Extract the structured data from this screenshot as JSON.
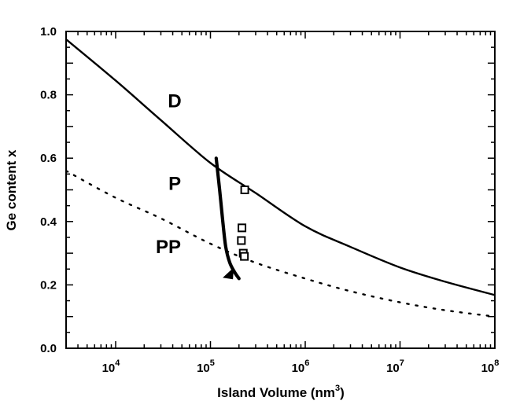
{
  "chart_data": {
    "type": "line",
    "title": "",
    "xlabel": "Island Volume (nm",
    "xlabel_sup": "3",
    "xlabel_close": ")",
    "ylabel": "Ge content x",
    "xscale": "log",
    "xlim": [
      3000,
      100000000
    ],
    "ylim": [
      0.0,
      1.0
    ],
    "x_ticks": [
      {
        "value": 10000,
        "base": "10",
        "exp": "4"
      },
      {
        "value": 100000,
        "base": "10",
        "exp": "5"
      },
      {
        "value": 1000000,
        "base": "10",
        "exp": "6"
      },
      {
        "value": 10000000,
        "base": "10",
        "exp": "7"
      },
      {
        "value": 100000000,
        "base": "10",
        "exp": "8"
      }
    ],
    "y_ticks": [
      {
        "value": 0.0,
        "label": "0.0"
      },
      {
        "value": 0.2,
        "label": "0.2"
      },
      {
        "value": 0.4,
        "label": "0.4"
      },
      {
        "value": 0.6,
        "label": "0.6"
      },
      {
        "value": 0.8,
        "label": "0.8"
      },
      {
        "value": 1.0,
        "label": "1.0"
      }
    ],
    "series": [
      {
        "style": "solid",
        "x": [
          3000,
          10000,
          30000,
          100000,
          300000,
          1000000,
          3000000,
          10000000,
          30000000,
          100000000
        ],
        "y": [
          0.975,
          0.845,
          0.72,
          0.585,
          0.49,
          0.385,
          0.32,
          0.255,
          0.21,
          0.168
        ]
      },
      {
        "style": "dotted",
        "x": [
          3000,
          10000,
          30000,
          100000,
          300000,
          1000000,
          3000000,
          10000000,
          30000000,
          100000000
        ],
        "y": [
          0.56,
          0.475,
          0.41,
          0.33,
          0.27,
          0.22,
          0.18,
          0.145,
          0.12,
          0.1
        ]
      },
      {
        "style": "thick",
        "x": [
          115000,
          125000,
          135000,
          145000,
          160000,
          180000,
          200000
        ],
        "y": [
          0.6,
          0.5,
          0.4,
          0.32,
          0.27,
          0.24,
          0.22
        ]
      }
    ],
    "markers": {
      "shape": "square-open",
      "points": [
        {
          "x": 230000,
          "y": 0.5
        },
        {
          "x": 215000,
          "y": 0.38
        },
        {
          "x": 212000,
          "y": 0.34
        },
        {
          "x": 222000,
          "y": 0.3
        },
        {
          "x": 228000,
          "y": 0.29
        }
      ]
    },
    "arrow_tip": {
      "x": 160000,
      "y": 0.235
    },
    "region_labels": [
      {
        "text": "D",
        "x": 42000,
        "y": 0.76
      },
      {
        "text": "P",
        "x": 42000,
        "y": 0.5
      },
      {
        "text": "PP",
        "x": 36000,
        "y": 0.3
      }
    ]
  }
}
